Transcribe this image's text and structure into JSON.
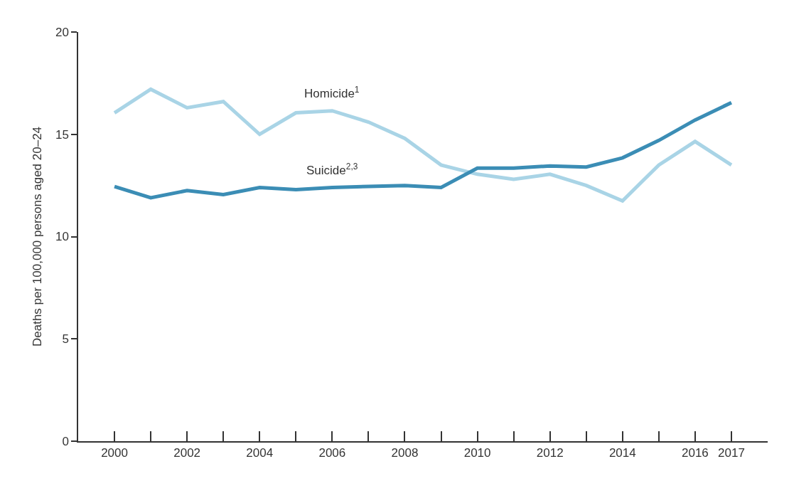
{
  "chart_data": {
    "type": "line",
    "ylabel": "Deaths per 100,000 persons aged 20–24",
    "x": [
      2000,
      2001,
      2002,
      2003,
      2004,
      2005,
      2006,
      2007,
      2008,
      2009,
      2010,
      2011,
      2012,
      2013,
      2014,
      2015,
      2016,
      2017
    ],
    "series": [
      {
        "name": "Homicide$^{1}$",
        "color": "#a9d4e6",
        "values": [
          16.05,
          17.2,
          16.3,
          16.6,
          15.0,
          16.05,
          16.15,
          15.6,
          14.8,
          13.5,
          13.05,
          12.8,
          13.05,
          12.5,
          11.75,
          13.5,
          14.65,
          13.5
        ]
      },
      {
        "name": "Suicide$^{2,3}$",
        "color": "#3b8db5",
        "values": [
          12.45,
          11.9,
          12.25,
          12.05,
          12.4,
          12.3,
          12.4,
          12.45,
          12.5,
          12.4,
          13.35,
          13.35,
          13.45,
          13.4,
          13.85,
          14.7,
          15.7,
          16.55
        ]
      }
    ],
    "xlim": [
      1999,
      2018
    ],
    "xticks": [
      2000,
      {
        "value": 2001,
        "label": null
      },
      2002,
      {
        "value": 2003,
        "label": null
      },
      2004,
      {
        "value": 2005,
        "label": null
      },
      2006,
      {
        "value": 2007,
        "label": null
      },
      2008,
      {
        "value": 2009,
        "label": null
      },
      2010,
      {
        "value": 2011,
        "label": null
      },
      2012,
      {
        "value": 2013,
        "label": null
      },
      2014,
      {
        "value": 2015,
        "label": null
      },
      2016,
      2017
    ],
    "ylim": [
      0,
      20
    ],
    "yticks": [
      0,
      5,
      10,
      15,
      20
    ],
    "legend": false,
    "marker": "none",
    "line_style": "solid"
  }
}
